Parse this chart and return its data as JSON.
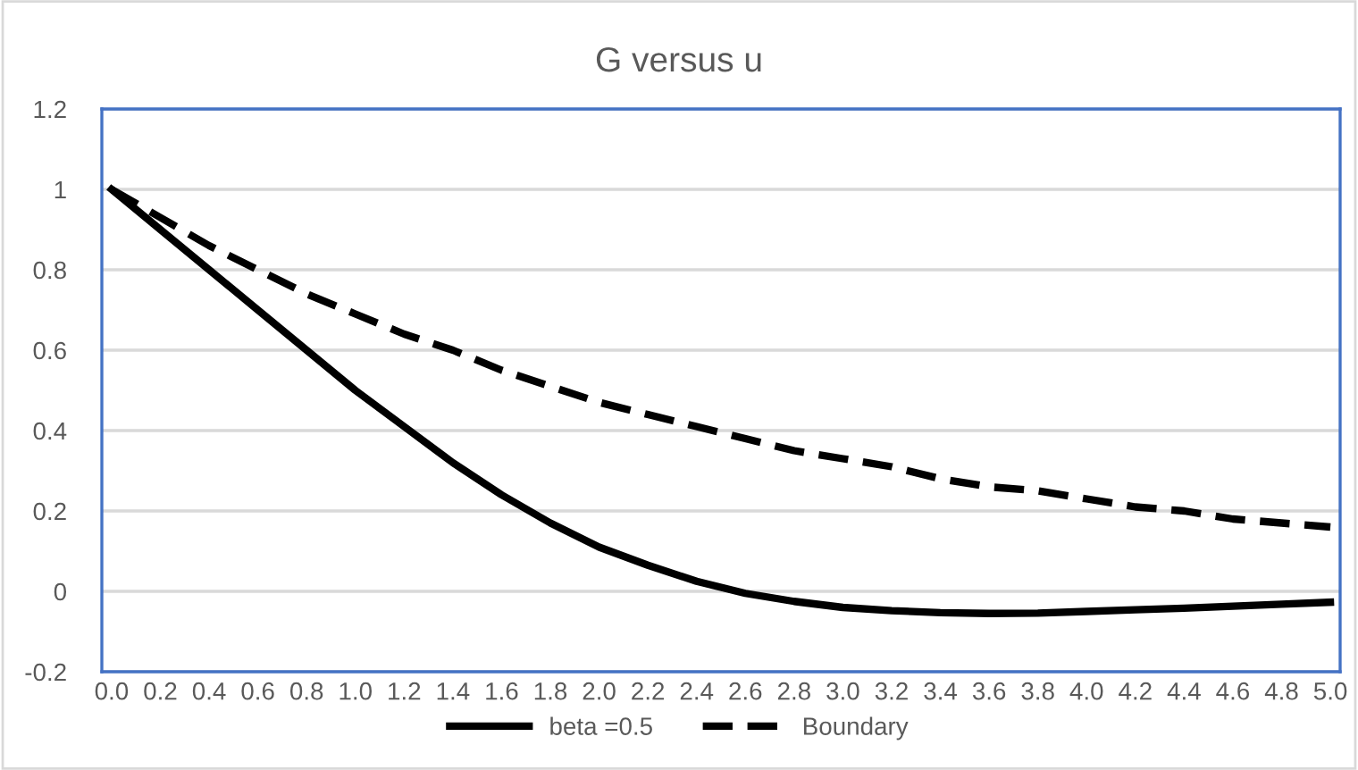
{
  "chart_data": {
    "type": "line",
    "title": "G versus u",
    "x": [
      0,
      0.2,
      0.4,
      0.6,
      0.8,
      1.0,
      1.2,
      1.4,
      1.6,
      1.8,
      2.0,
      2.2,
      2.4,
      2.6,
      2.8,
      3.0,
      3.2,
      3.4,
      3.6,
      3.8,
      4.0,
      4.2,
      4.4,
      4.6,
      4.8,
      5.0
    ],
    "series": [
      {
        "name": "beta =0.5",
        "color": "#000000",
        "line_style": "solid",
        "values": [
          1,
          0.9,
          0.8,
          0.7,
          0.6,
          0.5,
          0.41,
          0.32,
          0.24,
          0.17,
          0.11,
          0.065,
          0.025,
          -0.005,
          -0.025,
          -0.04,
          -0.048,
          -0.053,
          -0.055,
          -0.054,
          -0.05,
          -0.046,
          -0.042,
          -0.037,
          -0.032,
          -0.027
        ]
      },
      {
        "name": "Boundary",
        "color": "#000000",
        "line_style": "dashed",
        "values": [
          1,
          0.93,
          0.86,
          0.8,
          0.74,
          0.69,
          0.64,
          0.6,
          0.55,
          0.51,
          0.47,
          0.44,
          0.41,
          0.38,
          0.35,
          0.33,
          0.31,
          0.28,
          0.26,
          0.25,
          0.23,
          0.21,
          0.2,
          0.18,
          0.17,
          0.16
        ]
      }
    ],
    "xlim": [
      -0.04,
      5.04
    ],
    "xticks": [
      {
        "value": 0,
        "label": "0.0"
      },
      {
        "value": 0.2,
        "label": "0.2"
      },
      {
        "value": 0.4,
        "label": "0.4"
      },
      {
        "value": 0.6,
        "label": "0.6"
      },
      {
        "value": 0.8,
        "label": "0.8"
      },
      {
        "value": 1.0,
        "label": "1.0"
      },
      {
        "value": 1.2,
        "label": "1.2"
      },
      {
        "value": 1.4,
        "label": "1.4"
      },
      {
        "value": 1.6,
        "label": "1.6"
      },
      {
        "value": 1.8,
        "label": "1.8"
      },
      {
        "value": 2.0,
        "label": "2.0"
      },
      {
        "value": 2.2,
        "label": "2.2"
      },
      {
        "value": 2.4,
        "label": "2.4"
      },
      {
        "value": 2.6,
        "label": "2.6"
      },
      {
        "value": 2.8,
        "label": "2.8"
      },
      {
        "value": 3.0,
        "label": "3.0"
      },
      {
        "value": 3.2,
        "label": "3.2"
      },
      {
        "value": 3.4,
        "label": "3.4"
      },
      {
        "value": 3.6,
        "label": "3.6"
      },
      {
        "value": 3.8,
        "label": "3.8"
      },
      {
        "value": 4.0,
        "label": "4.0"
      },
      {
        "value": 4.2,
        "label": "4.2"
      },
      {
        "value": 4.4,
        "label": "4.4"
      },
      {
        "value": 4.6,
        "label": "4.6"
      },
      {
        "value": 4.8,
        "label": "4.8"
      },
      {
        "value": 5.0,
        "label": "5.0"
      }
    ],
    "ylim": [
      -0.2,
      1.2
    ],
    "yticks": [
      -0.2,
      0,
      0.2,
      0.4,
      0.6,
      0.8,
      1,
      1.2
    ],
    "grid": "y",
    "legend": "bottom",
    "marker": "none"
  }
}
